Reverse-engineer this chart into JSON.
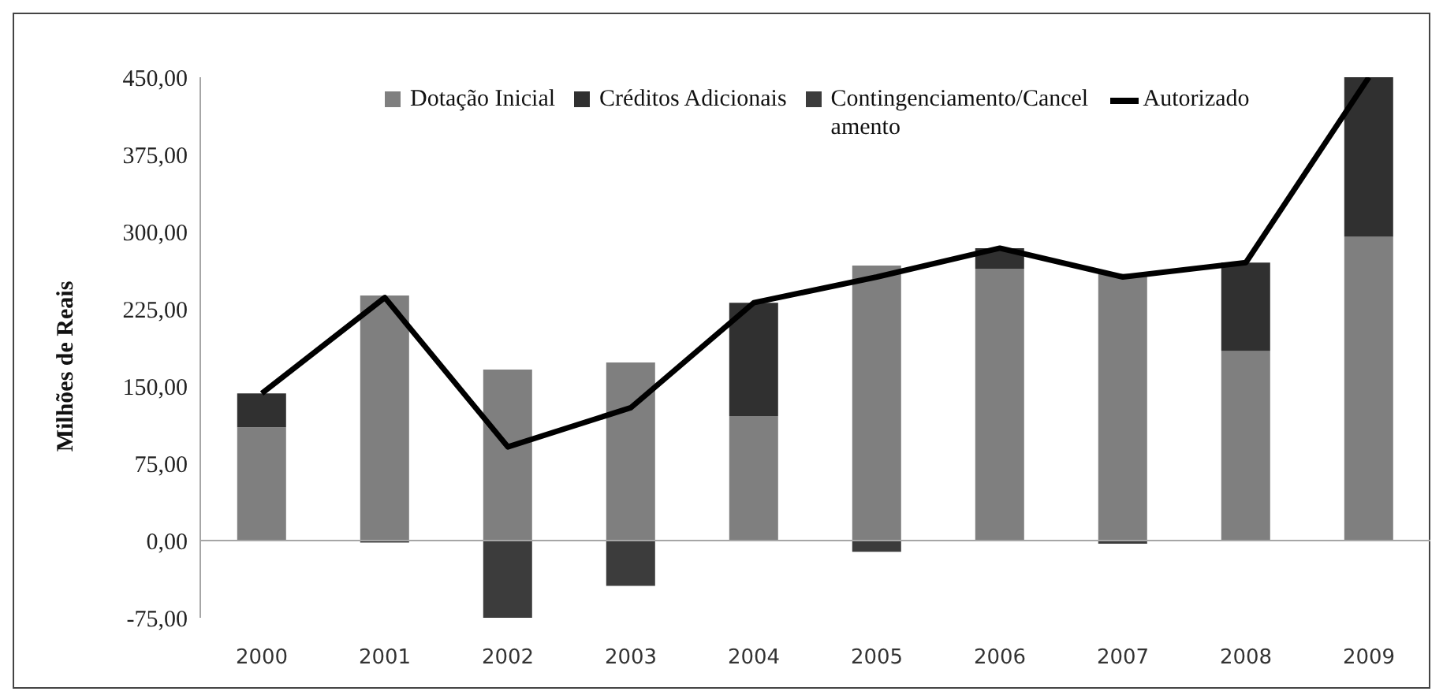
{
  "chart_data": {
    "type": "bar",
    "ylabel": "Milhões de Reais",
    "categories": [
      "2000",
      "2001",
      "2002",
      "2003",
      "2004",
      "2005",
      "2006",
      "2007",
      "2008",
      "2009"
    ],
    "stacked": true,
    "series": [
      {
        "name": "Dotação Inicial",
        "color": "#7f7f7f",
        "values": [
          110,
          238,
          166,
          173,
          121,
          267,
          264,
          259,
          184,
          295
        ]
      },
      {
        "name": "Créditos Adicionais",
        "color": "#303030",
        "values": [
          33,
          0,
          0,
          0,
          110,
          0,
          20,
          0,
          86,
          155
        ]
      },
      {
        "name": "Contingenciamento/Cancelamento",
        "color": "#3c3c3c",
        "values": [
          0,
          -2,
          -75,
          -44,
          0,
          -11,
          0,
          -3,
          0,
          0
        ]
      },
      {
        "name": "Autorizado",
        "type": "line",
        "color": "#000000",
        "values": [
          143,
          236,
          91,
          129,
          231,
          256,
          284,
          256,
          270,
          450
        ]
      }
    ],
    "ylim": [
      -75,
      450
    ],
    "yticks": [
      {
        "value": -75,
        "label": "-75,00"
      },
      {
        "value": 0,
        "label": "0,00"
      },
      {
        "value": 75,
        "label": "75,00"
      },
      {
        "value": 150,
        "label": "150,00"
      },
      {
        "value": 225,
        "label": "225,00"
      },
      {
        "value": 300,
        "label": "300,00"
      },
      {
        "value": 375,
        "label": "375,00"
      },
      {
        "value": 450,
        "label": "450,00"
      }
    ],
    "legend": "top",
    "marker": "none",
    "line_style": "solid"
  }
}
